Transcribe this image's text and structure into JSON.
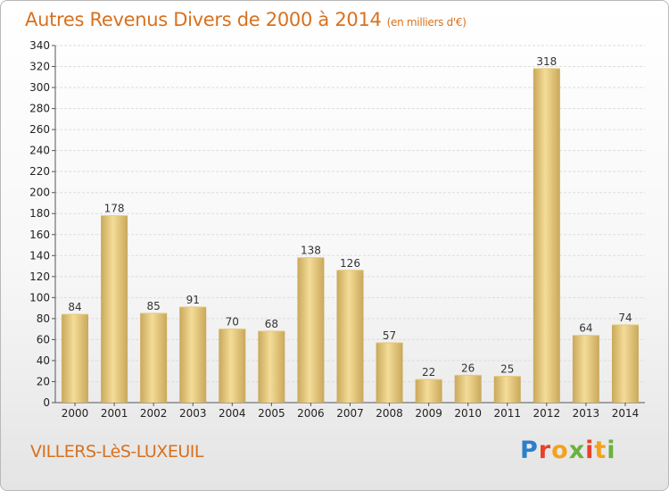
{
  "header": {
    "title": "Autres Revenus Divers de 2000 à 2014",
    "unit": "(en milliers d'€)"
  },
  "footer": {
    "place": "VILLERS-LèS-LUXEUIL",
    "logo_letters": [
      "P",
      "r",
      "o",
      "x",
      "i",
      "t",
      "i"
    ]
  },
  "colors": {
    "title": "#d8711f",
    "bar_light": "#f4dc98",
    "bar_dark": "#c9a85a",
    "grid": "#dddddd"
  },
  "chart_data": {
    "type": "bar",
    "title": "Autres Revenus Divers de 2000 à 2014",
    "subtitle": "(en milliers d'€)",
    "xlabel": "",
    "ylabel": "",
    "categories": [
      "2000",
      "2001",
      "2002",
      "2003",
      "2004",
      "2005",
      "2006",
      "2007",
      "2008",
      "2009",
      "2010",
      "2011",
      "2012",
      "2013",
      "2014"
    ],
    "values": [
      84,
      178,
      85,
      91,
      70,
      68,
      138,
      126,
      57,
      22,
      26,
      25,
      318,
      64,
      74
    ],
    "ylim": [
      0,
      340
    ],
    "yticks": [
      0,
      20,
      40,
      60,
      80,
      100,
      120,
      140,
      160,
      180,
      200,
      220,
      240,
      260,
      280,
      300,
      320,
      340
    ],
    "grid": true,
    "data_labels": true
  }
}
